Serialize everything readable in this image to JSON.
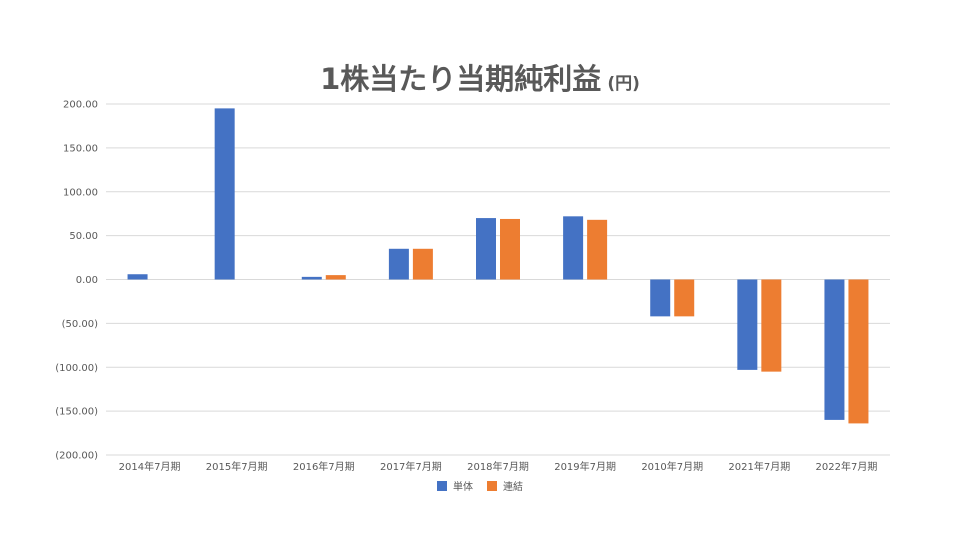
{
  "chart_data": {
    "type": "bar",
    "title": "1株当たり当期純利益",
    "title_unit": "(円)",
    "xlabel": "",
    "ylabel": "",
    "categories": [
      "2014年7月期",
      "2015年7月期",
      "2016年7月期",
      "2017年7月期",
      "2018年7月期",
      "2019年7月期",
      "2010年7月期",
      "2021年7月期",
      "2022年7月期"
    ],
    "series": [
      {
        "name": "単体",
        "color": "#4472C4",
        "values": [
          6,
          195,
          3,
          35,
          70,
          72,
          -42,
          -103,
          -160
        ]
      },
      {
        "name": "連結",
        "color": "#ED7D31",
        "values": [
          null,
          null,
          5,
          35,
          69,
          68,
          -42,
          -105,
          -164
        ]
      }
    ],
    "ylim": [
      -200,
      200
    ],
    "yticks": [
      200,
      150,
      100,
      50,
      0,
      -50,
      -100,
      -150,
      -200
    ],
    "ytick_labels": [
      "200.00",
      "150.00",
      "100.00",
      "50.00",
      "0.00",
      "(50.00)",
      "(100.00)",
      "(150.00)",
      "(200.00)"
    ],
    "grid": true,
    "legend_position": "bottom"
  }
}
